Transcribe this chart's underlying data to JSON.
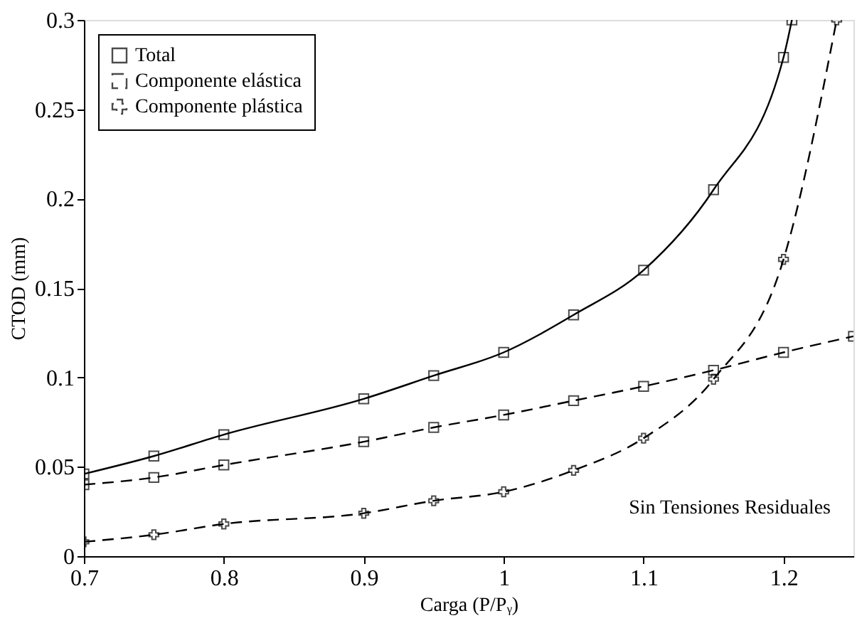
{
  "chart_data": {
    "type": "line",
    "xlabel": "Carga (P/Pᵧ)",
    "ylabel": "CTOD (mm)",
    "xlim": [
      0.7,
      1.25
    ],
    "xticks": [
      0.7,
      0.8,
      0.9,
      1,
      1.1,
      1.2
    ],
    "ylim": [
      0,
      0.3
    ],
    "yticks": [
      0,
      0.05,
      0.1,
      0.15,
      0.2,
      0.25,
      0.3
    ],
    "grid": false,
    "legend": "top left",
    "annotations": [
      "Sin Tensiones Residuales"
    ],
    "series": [
      {
        "name": "Total",
        "color": "#000000",
        "marker": "square",
        "line_style": "solid",
        "x": [
          0.7,
          0.75,
          0.8,
          0.9,
          0.95,
          1.0,
          1.05,
          1.1,
          1.15,
          1.2,
          1.206
        ],
        "values": [
          0.046,
          0.056,
          0.068,
          0.088,
          0.101,
          0.114,
          0.135,
          0.16,
          0.205,
          0.279,
          0.3
        ]
      },
      {
        "name": "Componente elástica",
        "color": "#000000",
        "marker": "square",
        "line_style": "dashed",
        "x": [
          0.7,
          0.75,
          0.8,
          0.9,
          0.95,
          1.0,
          1.05,
          1.1,
          1.15,
          1.2,
          1.25
        ],
        "values": [
          0.04,
          0.044,
          0.051,
          0.064,
          0.072,
          0.079,
          0.087,
          0.095,
          0.104,
          0.114,
          0.123
        ]
      },
      {
        "name": "Componente plástica",
        "color": "#000000",
        "marker": "cross",
        "line_style": "dashed",
        "x": [
          0.7,
          0.75,
          0.8,
          0.9,
          0.95,
          1.0,
          1.05,
          1.1,
          1.15,
          1.2,
          1.238
        ],
        "values": [
          0.008,
          0.012,
          0.018,
          0.024,
          0.031,
          0.036,
          0.048,
          0.066,
          0.099,
          0.166,
          0.3
        ]
      }
    ]
  }
}
